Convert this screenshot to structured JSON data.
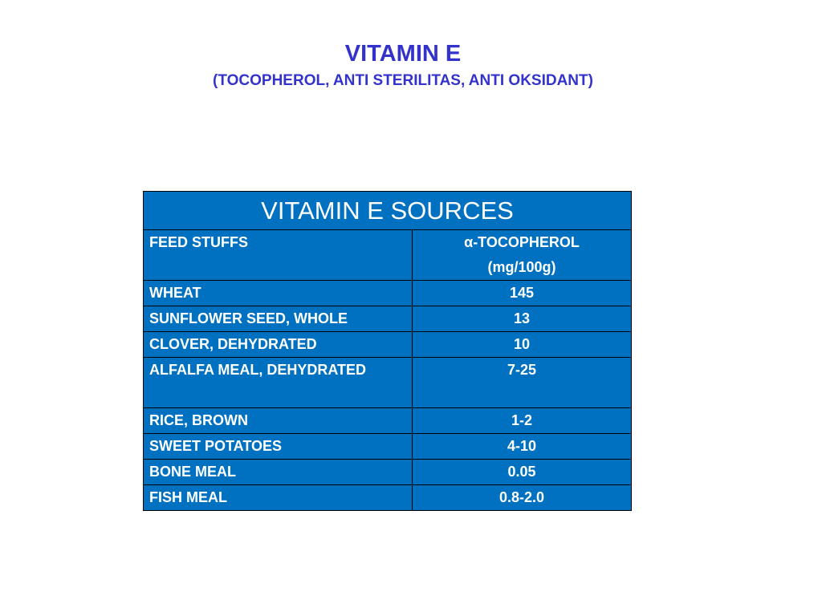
{
  "slide": {
    "title": "VITAMIN E",
    "subtitle": "(TOCOPHEROL, ANTI STERILITAS, ANTI OKSIDANT)"
  },
  "table": {
    "caption": "VITAMIN E SOURCES",
    "headers": {
      "feed": "FEED STUFFS",
      "value_line1": "α-TOCOPHEROL",
      "value_line2": "(mg/100g)"
    },
    "rows": [
      {
        "feed": "WHEAT",
        "value": "145"
      },
      {
        "feed": "SUNFLOWER SEED, WHOLE",
        "value": "13"
      },
      {
        "feed": "CLOVER, DEHYDRATED",
        "value": "10"
      },
      {
        "feed": "ALFALFA MEAL, DEHYDRATED",
        "value": "7-25"
      },
      {
        "feed": "RICE, BROWN",
        "value": "1-2"
      },
      {
        "feed": "SWEET POTATOES",
        "value": "4-10"
      },
      {
        "feed": "BONE MEAL",
        "value": "0.05"
      },
      {
        "feed": "FISH MEAL",
        "value": "0.8-2.0"
      }
    ]
  },
  "colors": {
    "title": "#3333cc",
    "table_fill": "#0070c0",
    "table_text": "#ffffff",
    "table_border": "#000000"
  }
}
